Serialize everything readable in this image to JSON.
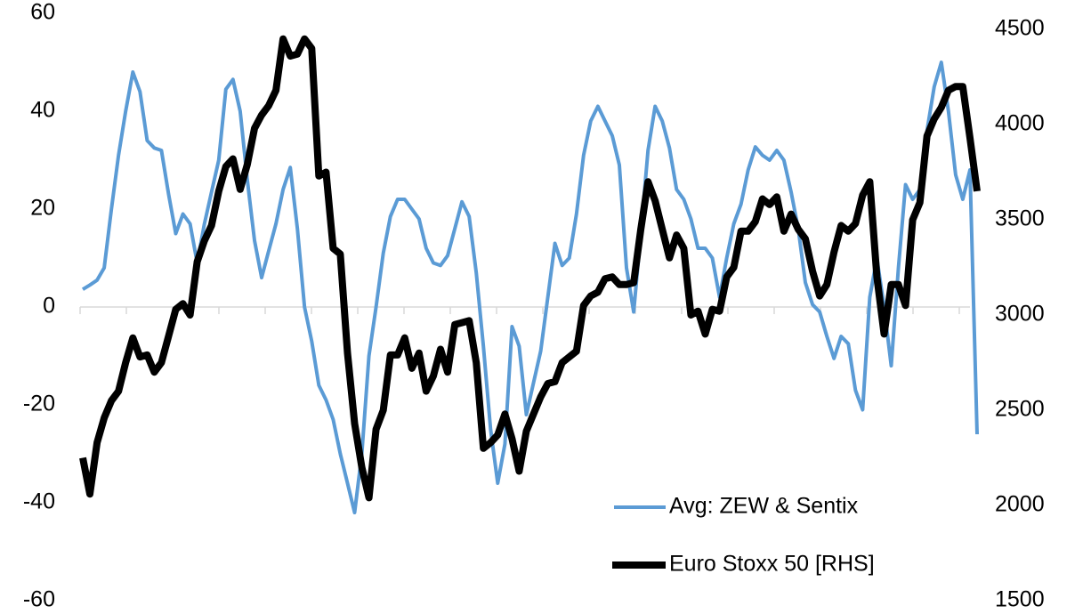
{
  "chart_data": {
    "type": "line",
    "ylim": [
      -60,
      60
    ],
    "yticks": [
      -60,
      -40,
      -20,
      0,
      20,
      40,
      60
    ],
    "y2lim": [
      1500,
      4500
    ],
    "y2ticks": [
      1500,
      2000,
      2500,
      3000,
      3500,
      4000,
      4500
    ],
    "grid": false,
    "legend": "bottom-right",
    "series": [
      {
        "name": "Avg: ZEW & Sentix",
        "color": "#5b9bd5",
        "values": [
          3.6,
          4.5,
          5.5,
          8,
          20,
          31,
          40,
          48,
          44,
          34,
          32.5,
          32,
          23,
          15,
          19,
          17,
          9,
          17,
          23.5,
          30,
          44.5,
          46.5,
          40,
          26,
          13.6,
          6,
          11.5,
          17,
          24,
          28.5,
          16,
          0,
          -7,
          -16,
          -19,
          -23,
          -30,
          -36,
          -42,
          -30,
          -10,
          0,
          11,
          18.5,
          22,
          22,
          20,
          18,
          12,
          9,
          8.5,
          10.5,
          16,
          21.5,
          18.5,
          7,
          -8,
          -25,
          -36,
          -28,
          -4,
          -8,
          -22,
          -15.5,
          -9,
          2,
          13,
          8.5,
          10,
          19,
          31,
          38,
          41,
          38,
          35,
          29,
          8,
          -1,
          15,
          32,
          41,
          38,
          32.5,
          24,
          22,
          18,
          12,
          12,
          10,
          2,
          10,
          17,
          21,
          28,
          32.7,
          31,
          30,
          32,
          30,
          23.5,
          16,
          5,
          0.5,
          -1,
          -6,
          -10.5,
          -6,
          -7.5,
          -17,
          -21,
          2,
          10,
          0,
          -12,
          8,
          25,
          22,
          24,
          36,
          45,
          50,
          40,
          27,
          22,
          28,
          -26
        ]
      },
      {
        "name": "Euro Stoxx 50 [RHS]",
        "color": "#000000",
        "axis": "y2",
        "values": [
          2250,
          2060,
          2330,
          2460,
          2550,
          2600,
          2750,
          2880,
          2780,
          2790,
          2700,
          2750,
          2890,
          3030,
          3060,
          3000,
          3280,
          3390,
          3470,
          3650,
          3780,
          3820,
          3660,
          3790,
          3980,
          4050,
          4100,
          4180,
          4450,
          4360,
          4370,
          4450,
          4400,
          3730,
          3750,
          3350,
          3320,
          2800,
          2430,
          2200,
          2040,
          2400,
          2500,
          2790,
          2790,
          2880,
          2720,
          2800,
          2600,
          2680,
          2820,
          2700,
          2950,
          2960,
          2970,
          2750,
          2300,
          2330,
          2370,
          2480,
          2350,
          2180,
          2390,
          2480,
          2570,
          2640,
          2650,
          2750,
          2780,
          2810,
          3050,
          3100,
          3120,
          3190,
          3200,
          3160,
          3160,
          3170,
          3450,
          3700,
          3600,
          3450,
          3300,
          3420,
          3350,
          3000,
          3020,
          2900,
          3030,
          3020,
          3200,
          3250,
          3440,
          3440,
          3490,
          3610,
          3580,
          3620,
          3440,
          3530,
          3450,
          3400,
          3230,
          3100,
          3160,
          3330,
          3470,
          3440,
          3480,
          3630,
          3700,
          3200,
          2900,
          3160,
          3160,
          3050,
          3500,
          3590,
          3940,
          4030,
          4090,
          4180,
          4200,
          4200,
          3930,
          3650
        ]
      }
    ]
  }
}
